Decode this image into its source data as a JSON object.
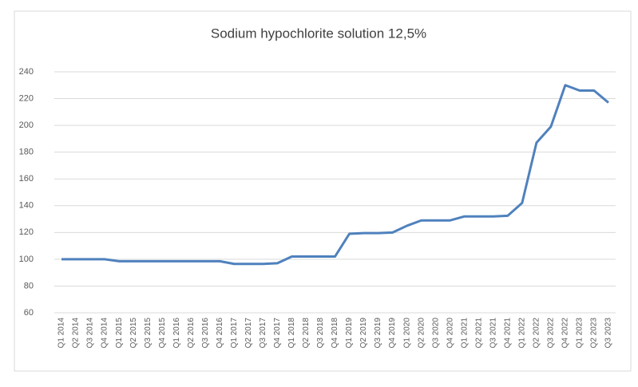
{
  "chart_data": {
    "type": "line",
    "title": "Sodium hypochlorite solution 12,5%",
    "categories": [
      "Q1 2014",
      "Q2 2014",
      "Q3 2014",
      "Q4 2014",
      "Q1 2015",
      "Q2 2015",
      "Q3 2015",
      "Q4 2015",
      "Q1 2016",
      "Q2 2016",
      "Q3 2016",
      "Q4 2016",
      "Q1 2017",
      "Q2 2017",
      "Q3 2017",
      "Q4 2017",
      "Q1 2018",
      "Q2 2018",
      "Q3 2018",
      "Q4 2018",
      "Q1 2019",
      "Q2 2019",
      "Q3 2019",
      "Q4 2019",
      "Q1 2020",
      "Q2 2020",
      "Q3 2020",
      "Q4 2020",
      "Q1 2021",
      "Q2 2021",
      "Q3 2021",
      "Q4 2021",
      "Q1 2022",
      "Q2 2022",
      "Q3 2022",
      "Q4 2022",
      "Q1 2023",
      "Q2 2023",
      "Q3 2023"
    ],
    "values": [
      100,
      100,
      100,
      100,
      98.5,
      98.5,
      98.5,
      98.5,
      98.5,
      98.5,
      98.5,
      98.5,
      96.5,
      96.5,
      96.5,
      97,
      102,
      102,
      102,
      102,
      119,
      119.5,
      119.5,
      120,
      125,
      129,
      129,
      129,
      132,
      132,
      132,
      132.5,
      142,
      187,
      199,
      230,
      226,
      226,
      217
    ],
    "color": "#4f81bd",
    "ylim": [
      60,
      240
    ],
    "yticks": [
      60,
      80,
      100,
      120,
      140,
      160,
      180,
      200,
      220,
      240
    ],
    "grid": true
  }
}
